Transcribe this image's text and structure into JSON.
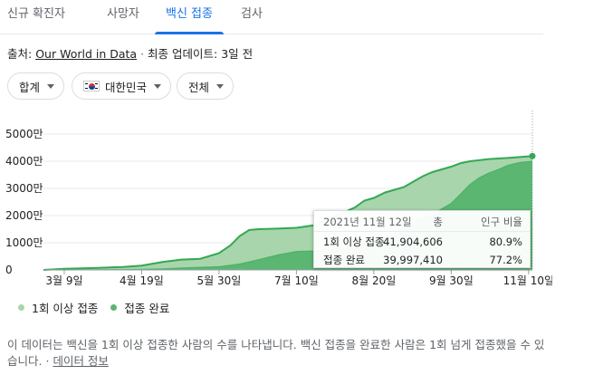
{
  "tabs": [
    {
      "label": "신규 확진자"
    },
    {
      "label": "사망자"
    },
    {
      "label": "백신 접종"
    },
    {
      "label": "검사"
    }
  ],
  "source": {
    "prefix": "출처:",
    "link": "Our World in Data",
    "separator": "·",
    "updated": "최종 업데이트: 3일 전"
  },
  "filters": {
    "total": "합계",
    "country": "대한민국",
    "scope": "전체"
  },
  "tooltip": {
    "date": "2021년 11월 12일",
    "col_total": "총",
    "col_pct": "인구 비율",
    "rows": [
      {
        "label": "1회 이상 접종",
        "total": "41,904,606",
        "pct": "80.9%"
      },
      {
        "label": "접종 완료",
        "total": "39,997,410",
        "pct": "77.2%"
      }
    ]
  },
  "legend": [
    {
      "label": "1회 이상 접종",
      "color": "#a8d5ac"
    },
    {
      "label": "접종 완료",
      "color": "#5bb672"
    }
  ],
  "footer": {
    "text": "이 데이터는 백신을 1회 이상 접종한 사람의 수를 나타냅니다. 백신 접종을 완료한 사람은 1회 넘게 접종했을 수 있습니다.",
    "separator": "·",
    "link": "데이터 정보"
  },
  "chart_data": {
    "type": "area",
    "yticks": [
      "0",
      "1000만",
      "2000만",
      "3000만",
      "4000만",
      "5000만"
    ],
    "ylim": [
      0,
      50000000
    ],
    "xticks": [
      {
        "label": "3월 9일",
        "x": "2021-03-09"
      },
      {
        "label": "4월 19일",
        "x": "2021-04-19"
      },
      {
        "label": "5월 30일",
        "x": "2021-05-30"
      },
      {
        "label": "7월 10일",
        "x": "2021-07-10"
      },
      {
        "label": "8월 20일",
        "x": "2021-08-20"
      },
      {
        "label": "9월 30일",
        "x": "2021-09-30"
      },
      {
        "label": "11월 10일",
        "x": "2021-11-10"
      }
    ],
    "xlim": [
      "2021-02-26",
      "2021-11-12"
    ],
    "colors": {
      "first": "#a8d5ac",
      "full": "#5bb672",
      "line": "#34a853"
    },
    "series": [
      {
        "name": "1회 이상 접종",
        "points": [
          [
            "2021-02-26",
            0
          ],
          [
            "2021-03-09",
            400000
          ],
          [
            "2021-03-25",
            700000
          ],
          [
            "2021-04-09",
            1100000
          ],
          [
            "2021-04-19",
            1600000
          ],
          [
            "2021-04-30",
            2900000
          ],
          [
            "2021-05-10",
            3800000
          ],
          [
            "2021-05-20",
            4100000
          ],
          [
            "2021-05-30",
            6200000
          ],
          [
            "2021-06-05",
            9000000
          ],
          [
            "2021-06-10",
            12500000
          ],
          [
            "2021-06-15",
            14700000
          ],
          [
            "2021-06-20",
            15000000
          ],
          [
            "2021-06-30",
            15200000
          ],
          [
            "2021-07-10",
            15500000
          ],
          [
            "2021-07-20",
            16500000
          ],
          [
            "2021-07-27",
            19000000
          ],
          [
            "2021-08-05",
            21500000
          ],
          [
            "2021-08-10",
            23000000
          ],
          [
            "2021-08-15",
            25500000
          ],
          [
            "2021-08-20",
            26500000
          ],
          [
            "2021-08-26",
            28500000
          ],
          [
            "2021-09-05",
            30500000
          ],
          [
            "2021-09-10",
            32500000
          ],
          [
            "2021-09-15",
            34500000
          ],
          [
            "2021-09-20",
            36000000
          ],
          [
            "2021-09-30",
            38000000
          ],
          [
            "2021-10-05",
            39300000
          ],
          [
            "2021-10-10",
            40000000
          ],
          [
            "2021-10-20",
            40800000
          ],
          [
            "2021-10-30",
            41200000
          ],
          [
            "2021-11-10",
            41800000
          ],
          [
            "2021-11-12",
            41904606
          ]
        ]
      },
      {
        "name": "접종 완료",
        "points": [
          [
            "2021-02-26",
            0
          ],
          [
            "2021-03-09",
            0
          ],
          [
            "2021-03-20",
            60000
          ],
          [
            "2021-04-09",
            150000
          ],
          [
            "2021-04-19",
            250000
          ],
          [
            "2021-04-30",
            400000
          ],
          [
            "2021-05-10",
            700000
          ],
          [
            "2021-05-30",
            1200000
          ],
          [
            "2021-06-10",
            2200000
          ],
          [
            "2021-06-20",
            3800000
          ],
          [
            "2021-06-30",
            5500000
          ],
          [
            "2021-07-10",
            6800000
          ],
          [
            "2021-07-20",
            7000000
          ],
          [
            "2021-07-30",
            7800000
          ],
          [
            "2021-08-10",
            8500000
          ],
          [
            "2021-08-20",
            10500000
          ],
          [
            "2021-08-31",
            13500000
          ],
          [
            "2021-09-10",
            18000000
          ],
          [
            "2021-09-20",
            20500000
          ],
          [
            "2021-09-30",
            24500000
          ],
          [
            "2021-10-05",
            28000000
          ],
          [
            "2021-10-10",
            31500000
          ],
          [
            "2021-10-15",
            34000000
          ],
          [
            "2021-10-20",
            35700000
          ],
          [
            "2021-10-25",
            37000000
          ],
          [
            "2021-10-30",
            38500000
          ],
          [
            "2021-11-05",
            39500000
          ],
          [
            "2021-11-10",
            39900000
          ],
          [
            "2021-11-12",
            39997410
          ]
        ]
      }
    ]
  }
}
